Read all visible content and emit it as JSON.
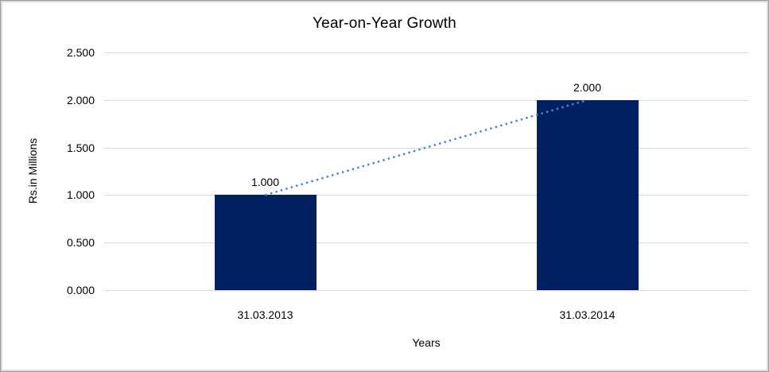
{
  "chart_data": {
    "type": "bar",
    "title": "Year-on-Year Growth",
    "categories": [
      "31.03.2013",
      "31.03.2014"
    ],
    "values": [
      1.0,
      2.0
    ],
    "data_labels": [
      "1.000",
      "2.000"
    ],
    "xlabel": "Years",
    "ylabel": "Rs.in Millions",
    "ylim": [
      0,
      2.5
    ],
    "ytick_labels": [
      "0.000",
      "0.500",
      "1.000",
      "1.500",
      "2.000",
      "2.500"
    ],
    "grid": true,
    "legend": "none",
    "trendline": {
      "style": "dotted",
      "color": "#4e86c6"
    },
    "colors": {
      "bar": "#002060",
      "gridline": "#d9d9d9",
      "text": "#000000",
      "background": "#ffffff"
    }
  }
}
